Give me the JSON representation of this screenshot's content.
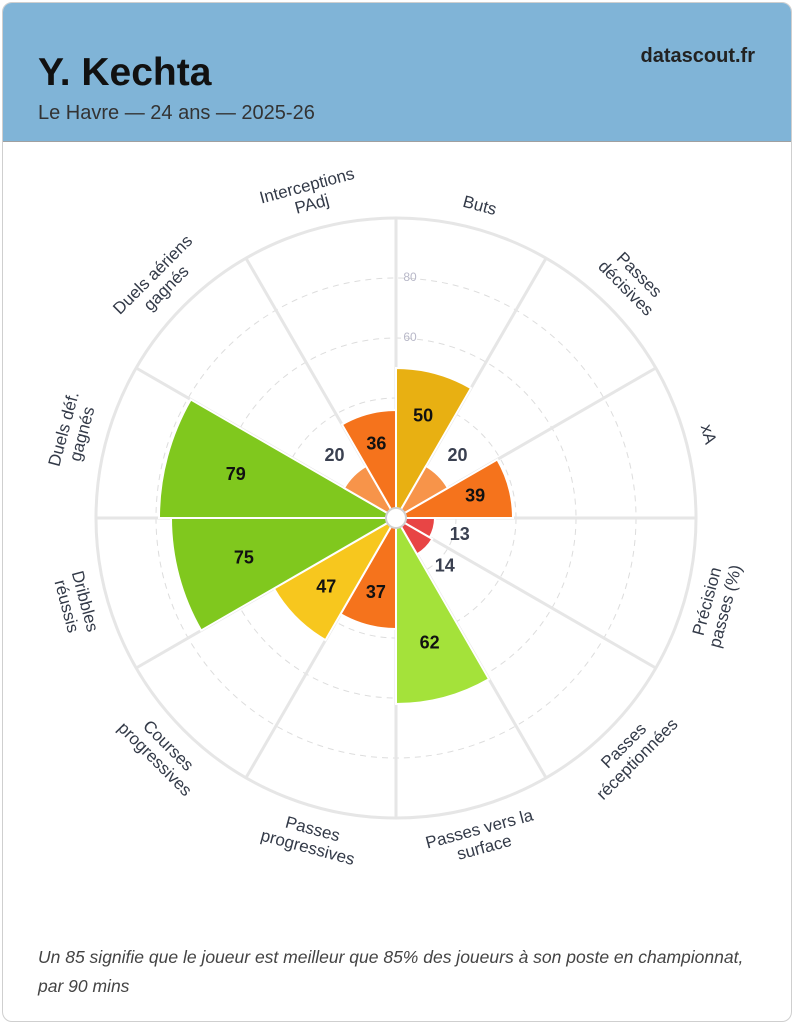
{
  "header": {
    "title": "Y. Kechta",
    "subtitle": "Le Havre — 24 ans — 2025-26",
    "brand": "datascout.fr"
  },
  "chart_data": {
    "type": "polar-bar",
    "categories": [
      [
        "Buts"
      ],
      [
        "Passes",
        "décisives"
      ],
      [
        "xA"
      ],
      [
        "Précision",
        "passes (%)"
      ],
      [
        "Passes",
        "réceptionnées"
      ],
      [
        "Passes vers la",
        "surface"
      ],
      [
        "Passes",
        "progressives"
      ],
      [
        "Courses",
        "progressives"
      ],
      [
        "Dribbles",
        "réussis"
      ],
      [
        "Duels déf.",
        "gagnés"
      ],
      [
        "Duels aériens",
        "gagnés"
      ],
      [
        "Interceptions",
        "PAdj"
      ]
    ],
    "values": [
      50,
      20,
      39,
      13,
      14,
      62,
      37,
      47,
      75,
      79,
      20,
      36
    ],
    "colors": [
      "#e8b012",
      "#f7944a",
      "#f5731c",
      "#e84545",
      "#e84545",
      "#a4e23a",
      "#f5731c",
      "#f7c71e",
      "#80c81e",
      "#80c81e",
      "#f7944a",
      "#f5731c"
    ],
    "ylim": [
      0,
      100
    ],
    "yticks": [
      20,
      40,
      60,
      80
    ],
    "grid": true
  },
  "footer": "Un 85 signifie que le joueur est meilleur que 85% des joueurs à son poste en championnat, par 90 mins"
}
